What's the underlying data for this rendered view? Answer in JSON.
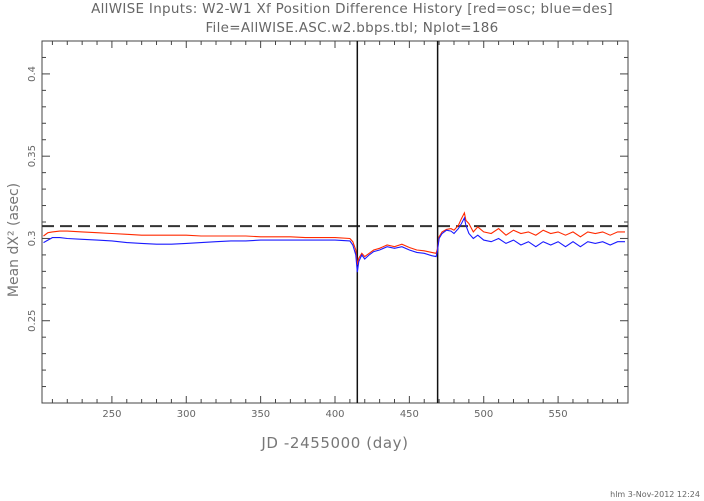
{
  "chart_data": {
    "type": "line",
    "title": "AllWISE Inputs: W2-W1 Xf Position Difference History [red=osc; blue=des]",
    "subtitle": "File=AllWISE.ASC.w2.bbps.tbl; Nplot=186",
    "xlabel": "JD -2455000 (day)",
    "ylabel": "Mean dX² (asec)",
    "xlim": [
      203,
      597
    ],
    "ylim": [
      0.2,
      0.42
    ],
    "xticks": [
      250,
      300,
      350,
      400,
      450,
      500,
      550
    ],
    "yticks": [
      0.25,
      0.3,
      0.35,
      0.4
    ],
    "ytick_labels": [
      "0.25",
      "0.3",
      "0.35",
      "0.4"
    ],
    "hline": 0.3075,
    "vlines": [
      415,
      469
    ],
    "grid": false,
    "series": [
      {
        "color": "#ff2a00",
        "x": [
          204,
          207,
          210,
          215,
          220,
          230,
          240,
          250,
          260,
          270,
          280,
          290,
          300,
          310,
          320,
          330,
          340,
          350,
          360,
          370,
          380,
          390,
          400,
          410,
          412,
          414,
          415,
          416,
          418,
          420,
          423,
          426,
          430,
          435,
          440,
          445,
          450,
          455,
          460,
          465,
          468,
          469,
          470,
          472,
          475,
          478,
          480,
          483,
          485,
          487,
          488,
          490,
          493,
          496,
          500,
          505,
          510,
          515,
          520,
          525,
          530,
          535,
          540,
          545,
          550,
          555,
          560,
          565,
          570,
          575,
          580,
          585,
          590,
          595
        ],
        "y": [
          0.3015,
          0.3035,
          0.304,
          0.3045,
          0.3045,
          0.304,
          0.3035,
          0.303,
          0.3025,
          0.302,
          0.302,
          0.302,
          0.302,
          0.3015,
          0.3015,
          0.3015,
          0.3015,
          0.301,
          0.301,
          0.301,
          0.3005,
          0.3005,
          0.3005,
          0.3,
          0.298,
          0.293,
          0.284,
          0.288,
          0.291,
          0.289,
          0.291,
          0.293,
          0.294,
          0.296,
          0.295,
          0.2965,
          0.2945,
          0.293,
          0.2925,
          0.2915,
          0.291,
          0.294,
          0.301,
          0.304,
          0.3055,
          0.306,
          0.305,
          0.308,
          0.312,
          0.3155,
          0.311,
          0.309,
          0.304,
          0.307,
          0.304,
          0.303,
          0.306,
          0.302,
          0.305,
          0.303,
          0.304,
          0.302,
          0.305,
          0.303,
          0.304,
          0.302,
          0.304,
          0.301,
          0.304,
          0.303,
          0.304,
          0.302,
          0.304,
          0.304
        ]
      },
      {
        "color": "#1a1aff",
        "x": [
          204,
          207,
          210,
          215,
          220,
          230,
          240,
          250,
          260,
          270,
          280,
          290,
          300,
          310,
          320,
          330,
          340,
          350,
          360,
          370,
          380,
          390,
          400,
          410,
          412,
          414,
          415,
          416,
          418,
          420,
          423,
          426,
          430,
          435,
          440,
          445,
          450,
          455,
          460,
          465,
          468,
          469,
          470,
          472,
          475,
          478,
          480,
          483,
          485,
          487,
          488,
          490,
          493,
          496,
          500,
          505,
          510,
          515,
          520,
          525,
          530,
          535,
          540,
          545,
          550,
          555,
          560,
          565,
          570,
          575,
          580,
          585,
          590,
          595
        ],
        "y": [
          0.2975,
          0.299,
          0.3005,
          0.3005,
          0.3,
          0.2995,
          0.299,
          0.2985,
          0.2975,
          0.297,
          0.2965,
          0.2965,
          0.297,
          0.2975,
          0.298,
          0.2985,
          0.2985,
          0.299,
          0.299,
          0.299,
          0.299,
          0.299,
          0.299,
          0.2985,
          0.296,
          0.29,
          0.2795,
          0.286,
          0.29,
          0.2875,
          0.29,
          0.292,
          0.293,
          0.295,
          0.294,
          0.295,
          0.293,
          0.2915,
          0.291,
          0.2895,
          0.289,
          0.293,
          0.3,
          0.303,
          0.305,
          0.3045,
          0.303,
          0.306,
          0.309,
          0.3125,
          0.308,
          0.303,
          0.3,
          0.302,
          0.299,
          0.298,
          0.3,
          0.297,
          0.299,
          0.296,
          0.298,
          0.295,
          0.298,
          0.296,
          0.298,
          0.295,
          0.298,
          0.295,
          0.298,
          0.297,
          0.298,
          0.296,
          0.298,
          0.298
        ]
      }
    ]
  },
  "footer": {
    "stamp": "hlm  3-Nov-2012 12:24"
  }
}
